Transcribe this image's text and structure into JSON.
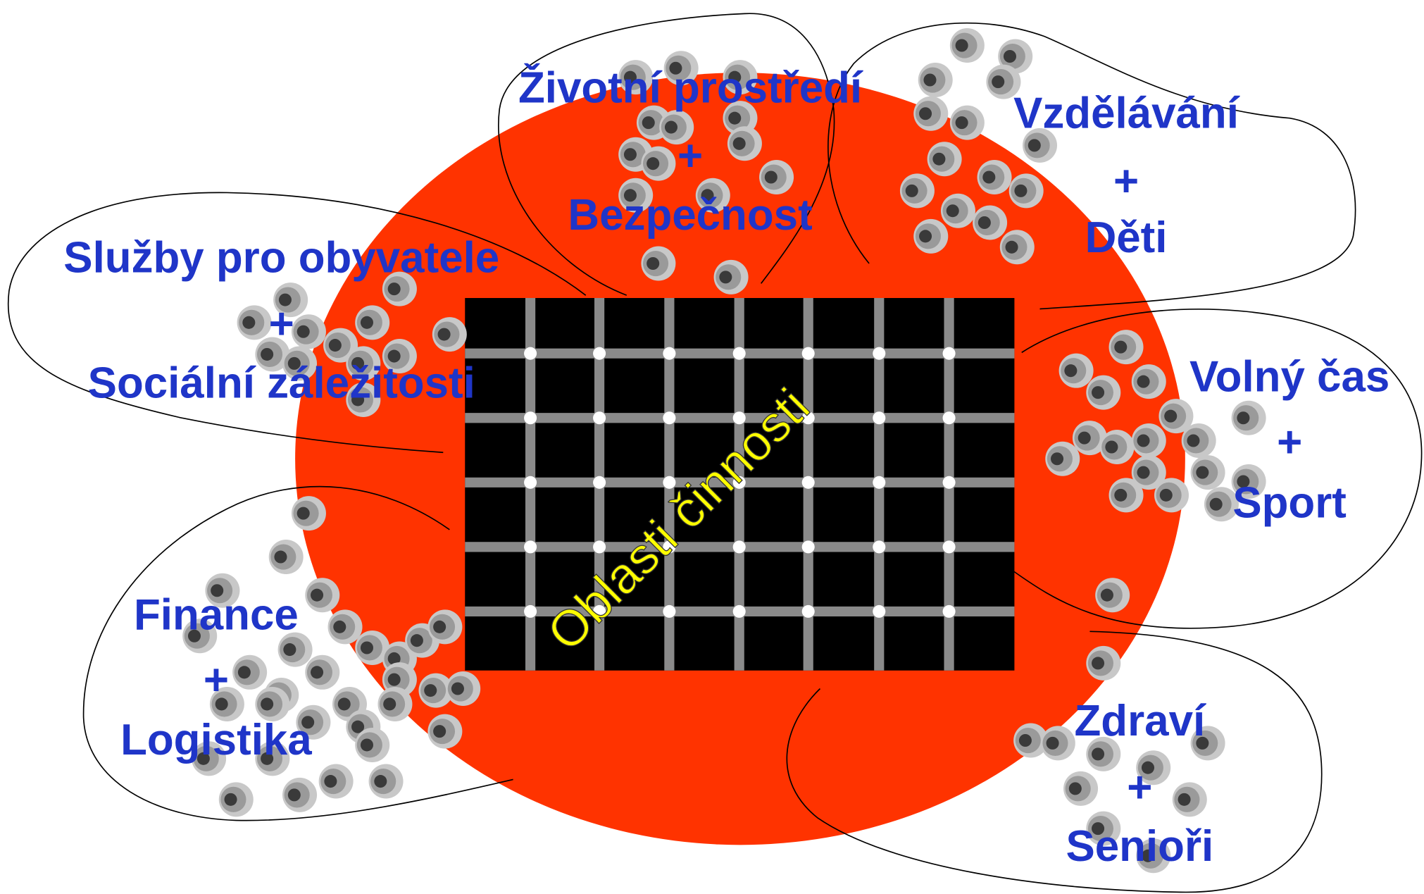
{
  "center": "Oblasti činnosti",
  "areas": [
    {
      "lines": [
        "Životní prostředí",
        "+",
        "Bezpečnost"
      ]
    },
    {
      "lines": [
        "Vzdělávání",
        "+",
        "Děti"
      ]
    },
    {
      "lines": [
        "Služby pro obyvatele",
        "+",
        "Sociální záležitosti"
      ]
    },
    {
      "lines": [
        "Volný čas",
        "+",
        "Sport"
      ]
    },
    {
      "lines": [
        "Finance",
        "+",
        "Logistika"
      ]
    },
    {
      "lines": [
        "Zdraví",
        "+",
        "Senioři"
      ]
    }
  ]
}
